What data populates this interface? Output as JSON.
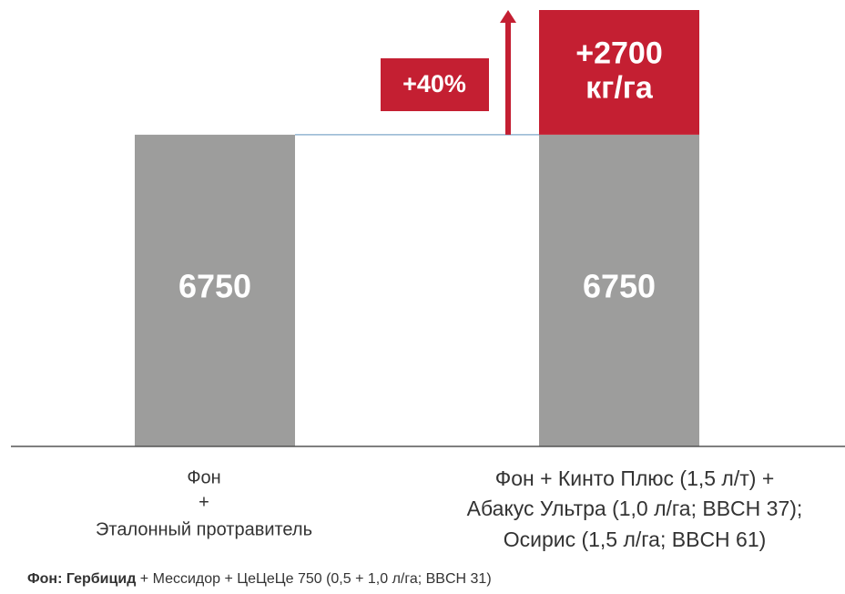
{
  "chart_data": {
    "type": "stacked_bar",
    "categories": [
      [
        "Фон",
        "+",
        "Эталонный протравитель"
      ],
      [
        "Фон  + Кинто Плюс (1,5 л/т) +",
        "Абакус Ультра (1,0 л/га; BBCH 37);",
        "Осирис (1,5 л/га; BBCH 61)"
      ]
    ],
    "series": [
      {
        "color": "#9d9d9c",
        "values": [
          6750,
          6750
        ]
      },
      {
        "color": "#c41f32",
        "values": [
          null,
          2700
        ],
        "value_labels": [
          null,
          [
            "+2700",
            "кг/га"
          ]
        ]
      }
    ],
    "ylim": [
      0,
      9450
    ],
    "annotation": "+40%",
    "footnote": {
      "bold": "Фон: Гербицид",
      "text": " + Мессидор + ЦеЦеЦе 750 (0,5 + 1,0 л/га; BBCH 31)"
    }
  }
}
